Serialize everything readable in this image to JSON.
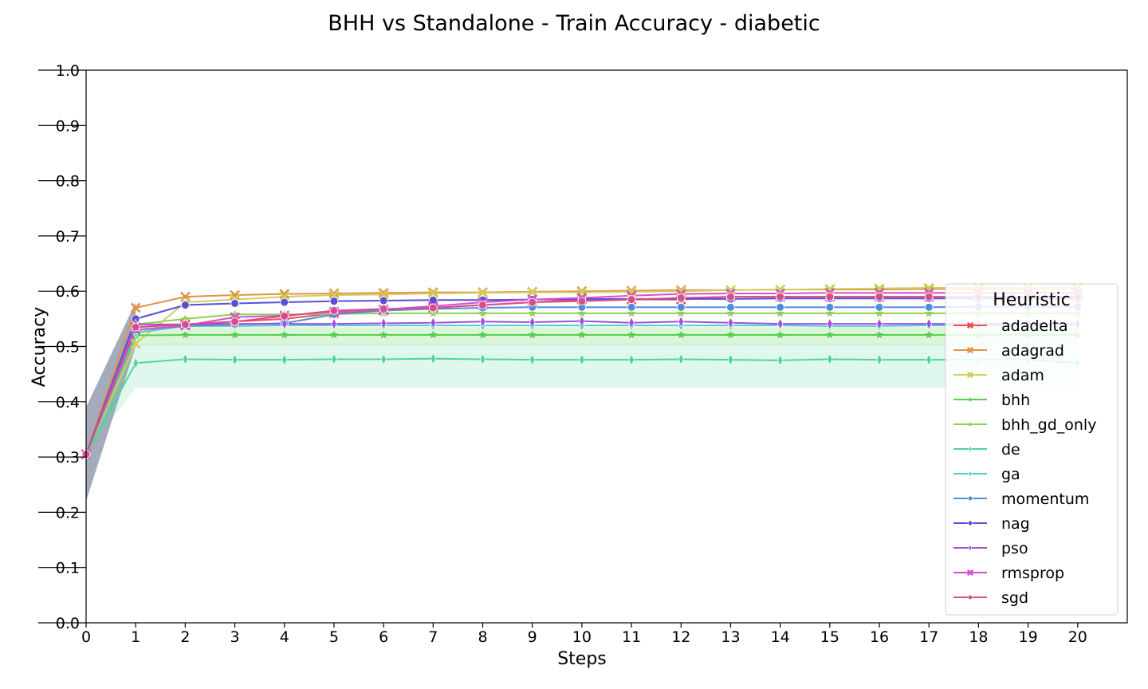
{
  "chart_data": {
    "type": "line",
    "title": "BHH vs Standalone - Train Accuracy - diabetic",
    "xlabel": "Steps",
    "ylabel": "Accuracy",
    "xlim": [
      0,
      21
    ],
    "ylim": [
      0.0,
      1.0
    ],
    "xticks": [
      0,
      1,
      2,
      3,
      4,
      5,
      6,
      7,
      8,
      9,
      10,
      11,
      12,
      13,
      14,
      15,
      16,
      17,
      18,
      19,
      20
    ],
    "yticks": [
      0.0,
      0.1,
      0.2,
      0.3,
      0.4,
      0.5,
      0.6,
      0.7,
      0.8,
      0.9,
      1.0
    ],
    "x": [
      0,
      1,
      2,
      3,
      4,
      5,
      6,
      7,
      8,
      9,
      10,
      11,
      12,
      13,
      14,
      15,
      16,
      17,
      18,
      19,
      20
    ],
    "legend": {
      "title": "Heuristic",
      "placement": "center-right"
    },
    "grid": false,
    "series": [
      {
        "name": "adadelta",
        "color": "#e8514f",
        "marker": "x",
        "values": [
          0.305,
          0.535,
          0.54,
          0.545,
          0.55,
          0.56,
          0.565,
          0.57,
          0.575,
          0.58,
          0.585,
          0.585,
          0.585,
          0.59,
          0.59,
          0.59,
          0.59,
          0.59,
          0.59,
          0.59,
          0.59
        ]
      },
      {
        "name": "adagrad",
        "color": "#e0924a",
        "marker": "x",
        "values": [
          0.305,
          0.57,
          0.59,
          0.593,
          0.595,
          0.596,
          0.597,
          0.598,
          0.598,
          0.599,
          0.6,
          0.601,
          0.602,
          0.602,
          0.603,
          0.603,
          0.603,
          0.604,
          0.604,
          0.604,
          0.605
        ]
      },
      {
        "name": "adam",
        "color": "#cfd05a",
        "marker": "x",
        "values": [
          0.305,
          0.505,
          0.58,
          0.585,
          0.59,
          0.593,
          0.594,
          0.596,
          0.597,
          0.598,
          0.598,
          0.599,
          0.6,
          0.602,
          0.603,
          0.604,
          0.605,
          0.606,
          0.606,
          0.606,
          0.606
        ]
      },
      {
        "name": "bhh",
        "color": "#55d04e",
        "marker": "star",
        "values": [
          0.305,
          0.52,
          0.521,
          0.521,
          0.521,
          0.521,
          0.521,
          0.521,
          0.521,
          0.521,
          0.521,
          0.521,
          0.521,
          0.521,
          0.521,
          0.521,
          0.521,
          0.521,
          0.521,
          0.521,
          0.521
        ]
      },
      {
        "name": "bhh_gd_only",
        "color": "#8fd152",
        "marker": "star",
        "values": [
          0.305,
          0.54,
          0.55,
          0.558,
          0.558,
          0.559,
          0.56,
          0.56,
          0.56,
          0.56,
          0.56,
          0.56,
          0.56,
          0.56,
          0.56,
          0.56,
          0.56,
          0.56,
          0.56,
          0.56,
          0.56
        ]
      },
      {
        "name": "de",
        "color": "#4fd49c",
        "marker": "diamond",
        "band": [
          0.425,
          0.505
        ],
        "values": [
          0.305,
          0.47,
          0.477,
          0.476,
          0.476,
          0.477,
          0.477,
          0.478,
          0.477,
          0.476,
          0.476,
          0.476,
          0.477,
          0.476,
          0.475,
          0.477,
          0.476,
          0.476,
          0.476,
          0.476,
          0.47
        ]
      },
      {
        "name": "ga",
        "color": "#4fcbd8",
        "marker": "diamond",
        "values": [
          0.305,
          0.525,
          0.537,
          0.537,
          0.538,
          0.538,
          0.538,
          0.538,
          0.538,
          0.538,
          0.538,
          0.538,
          0.538,
          0.538,
          0.538,
          0.537,
          0.537,
          0.538,
          0.538,
          0.538,
          0.538
        ]
      },
      {
        "name": "momentum",
        "color": "#4f8fd8",
        "marker": "circle",
        "values": [
          0.305,
          0.53,
          0.537,
          0.54,
          0.542,
          0.558,
          0.565,
          0.568,
          0.57,
          0.571,
          0.571,
          0.571,
          0.571,
          0.571,
          0.571,
          0.571,
          0.571,
          0.571,
          0.572,
          0.572,
          0.572
        ]
      },
      {
        "name": "nag",
        "color": "#5a4fd6",
        "marker": "circle",
        "values": [
          0.305,
          0.55,
          0.575,
          0.578,
          0.58,
          0.582,
          0.583,
          0.584,
          0.584,
          0.585,
          0.586,
          0.586,
          0.586,
          0.586,
          0.587,
          0.587,
          0.587,
          0.587,
          0.587,
          0.587,
          0.587
        ]
      },
      {
        "name": "pso",
        "color": "#a44fd8",
        "marker": "diamond",
        "values": [
          0.305,
          0.54,
          0.54,
          0.541,
          0.541,
          0.541,
          0.542,
          0.543,
          0.545,
          0.544,
          0.546,
          0.543,
          0.545,
          0.543,
          0.541,
          0.541,
          0.541,
          0.541,
          0.541,
          0.541,
          0.541
        ]
      },
      {
        "name": "rmsprop",
        "color": "#d64fd0",
        "marker": "x",
        "values": [
          0.305,
          0.53,
          0.538,
          0.553,
          0.556,
          0.563,
          0.567,
          0.573,
          0.58,
          0.585,
          0.588,
          0.592,
          0.595,
          0.596,
          0.596,
          0.597,
          0.597,
          0.597,
          0.597,
          0.597,
          0.597
        ]
      },
      {
        "name": "sgd",
        "color": "#d64f8c",
        "marker": "circle",
        "values": [
          0.305,
          0.535,
          0.54,
          0.545,
          0.555,
          0.565,
          0.568,
          0.57,
          0.575,
          0.58,
          0.582,
          0.585,
          0.588,
          0.59,
          0.59,
          0.59,
          0.59,
          0.59,
          0.59,
          0.59,
          0.59
        ]
      }
    ]
  }
}
